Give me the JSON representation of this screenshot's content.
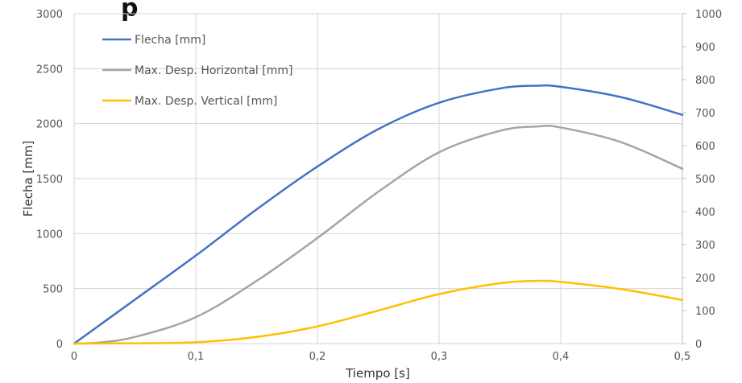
{
  "chart_data": {
    "type": "line",
    "title_fragment": "p",
    "xlabel": "Tiempo [s]",
    "ylabel": "Flecha [mm]",
    "y2label": "",
    "xlim": [
      0,
      0.5
    ],
    "ylim": [
      0,
      3000
    ],
    "y2lim": [
      0,
      1000
    ],
    "grid": true,
    "legend_position": "top-left",
    "x_ticks": [
      "0",
      "0,1",
      "0,2",
      "0,3",
      "0,4",
      "0,5"
    ],
    "y_ticks": [
      "0",
      "500",
      "1000",
      "1500",
      "2000",
      "2500",
      "3000"
    ],
    "y2_ticks": [
      "0",
      "100",
      "200",
      "300",
      "400",
      "500",
      "600",
      "700",
      "800",
      "900",
      "1000"
    ],
    "series": [
      {
        "name": "Flecha [mm]",
        "axis": "left",
        "color": "#4472C4",
        "x": [
          0,
          0.05,
          0.1,
          0.15,
          0.2,
          0.25,
          0.3,
          0.35,
          0.38,
          0.4,
          0.45,
          0.5
        ],
        "y": [
          0,
          400,
          800,
          1220,
          1610,
          1950,
          2190,
          2320,
          2345,
          2335,
          2240,
          2080
        ]
      },
      {
        "name": "Max. Desp. Horizontal [mm]",
        "axis": "right",
        "color": "#A5A5A5",
        "x": [
          0,
          0.02,
          0.05,
          0.1,
          0.15,
          0.2,
          0.25,
          0.3,
          0.35,
          0.38,
          0.4,
          0.45,
          0.5
        ],
        "y": [
          0,
          3,
          20,
          80,
          190,
          320,
          460,
          580,
          645,
          658,
          655,
          610,
          530
        ]
      },
      {
        "name": "Max. Desp. Vertical  [mm]",
        "axis": "right",
        "color": "#FFC000",
        "x": [
          0,
          0.05,
          0.1,
          0.15,
          0.2,
          0.25,
          0.3,
          0.35,
          0.38,
          0.4,
          0.45,
          0.5
        ],
        "y": [
          0,
          1,
          4,
          20,
          52,
          100,
          150,
          183,
          190,
          187,
          165,
          132
        ]
      }
    ]
  }
}
